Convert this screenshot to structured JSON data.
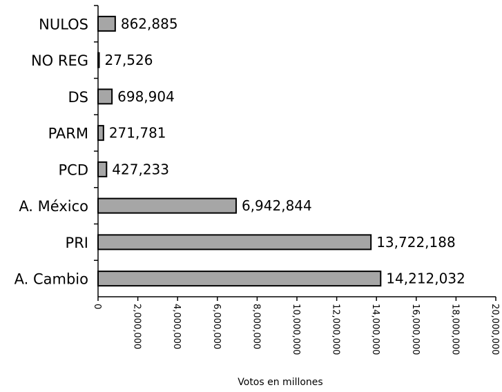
{
  "chart_data": {
    "type": "bar",
    "orientation": "horizontal",
    "title": "",
    "xlabel": "Votos en millones",
    "ylabel": "",
    "categories": [
      "NULOS",
      "NO REG",
      "DS",
      "PARM",
      "PCD",
      "A. México",
      "PRI",
      "A. Cambio"
    ],
    "values": [
      862885,
      27526,
      698904,
      271781,
      427233,
      6942844,
      13722188,
      14212032
    ],
    "value_labels": [
      "862,885",
      "27,526",
      "698,904",
      "271,781",
      "427,233",
      "6,942,844",
      "13,722,188",
      "14,212,032"
    ],
    "xlim": [
      0,
      20000000
    ],
    "xticks": [
      0,
      2000000,
      4000000,
      6000000,
      8000000,
      10000000,
      12000000,
      14000000,
      16000000,
      18000000,
      20000000
    ],
    "xtick_labels": [
      "0",
      "2,000,000",
      "4,000,000",
      "6,000,000",
      "8,000,000",
      "10,000,000",
      "12,000,000",
      "14,000,000",
      "16,000,000",
      "18,000,000",
      "20,000,000"
    ],
    "grid": false,
    "legend": "none",
    "bar_color": "#a6a6a6",
    "bar_edge_color": "#000000"
  }
}
